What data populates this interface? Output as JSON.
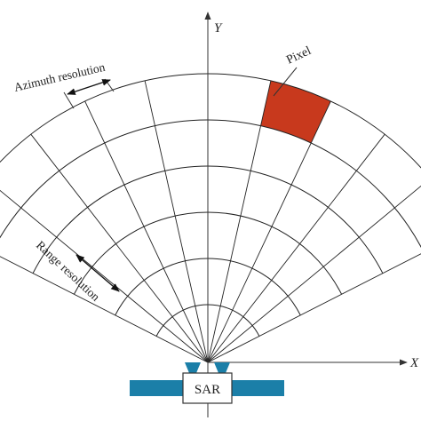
{
  "labels": {
    "axis_y": "Y",
    "axis_x": "X",
    "pixel": "Pixel",
    "azimuth_resolution": "Azimuth resolution",
    "range_resolution": "Range resolution",
    "sar": "SAR"
  },
  "grid": {
    "range_cells": 5,
    "azimuth_cells": 10
  },
  "highlighted_pixel": {
    "range_index": 4,
    "azimuth_index": 6
  },
  "colors": {
    "pixel_fill": "#c8391d",
    "platform": "#1b7fa8",
    "antenna": "#1b7fa8",
    "grid": "#222222"
  }
}
